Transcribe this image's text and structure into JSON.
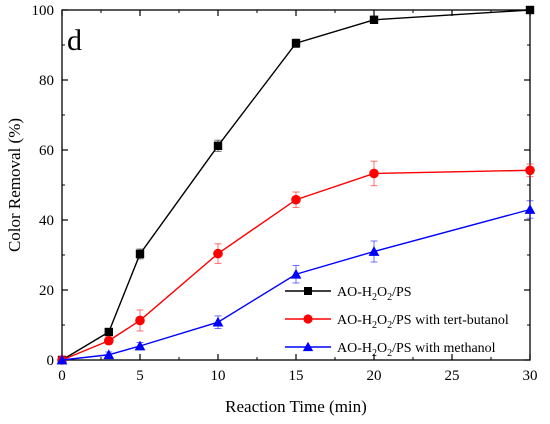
{
  "chart_data": {
    "type": "line",
    "panel_label": "d",
    "xlabel": "Reaction Time (min)",
    "ylabel": "Color Removal (%)",
    "xlim": [
      0,
      30
    ],
    "ylim": [
      0,
      100
    ],
    "xticks": [
      0,
      5,
      10,
      15,
      20,
      25,
      30
    ],
    "yticks": [
      0,
      20,
      40,
      60,
      80,
      100
    ],
    "grid": false,
    "legend_position": "bottom-right",
    "series": [
      {
        "name": "AO-H2O2/PS",
        "legend": {
          "a": "AO-H",
          "s1": "2",
          "b": "O",
          "s2": "2",
          "c": "/PS"
        },
        "color": "#000000",
        "marker": "square",
        "x": [
          0,
          3,
          5,
          10,
          15,
          20,
          30
        ],
        "y": [
          0,
          8,
          30.3,
          61.2,
          90.5,
          97.2,
          100
        ],
        "err": [
          0,
          0.8,
          1.4,
          1.6,
          1.2,
          0.6,
          0.4
        ]
      },
      {
        "name": "AO-H2O2/PS with tert-butanol",
        "legend": {
          "a": "AO-H",
          "s1": "2",
          "b": "O",
          "s2": "2",
          "c": "/PS with tert-butanol"
        },
        "color": "#ff0000",
        "marker": "circle",
        "x": [
          0,
          3,
          5,
          10,
          15,
          20,
          30
        ],
        "y": [
          0,
          5.5,
          11.3,
          30.4,
          45.8,
          53.3,
          54.2
        ],
        "err": [
          0,
          1.0,
          3.0,
          2.8,
          2.2,
          3.5,
          1.8
        ]
      },
      {
        "name": "AO-H2O2/PS with methanol",
        "legend": {
          "a": "AO-H",
          "s1": "2",
          "b": "O",
          "s2": "2",
          "c": "/PS with  methanol"
        },
        "color": "#0000ff",
        "marker": "triangle",
        "x": [
          0,
          3,
          5,
          10,
          15,
          20,
          30
        ],
        "y": [
          0,
          1.5,
          4,
          10.8,
          24.5,
          31,
          43
        ],
        "err": [
          0,
          0.8,
          1.0,
          1.8,
          2.5,
          3.0,
          2.5
        ]
      }
    ]
  }
}
